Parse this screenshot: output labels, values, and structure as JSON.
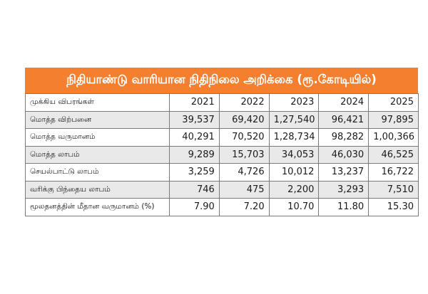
{
  "title": "நிதியாண்டு வாரியான நிதிநிலை அறிக்கை (ரூ.கோடியில்)",
  "header": {
    "label": "முக்கிய விபரங்கள்",
    "years": [
      "2021",
      "2022",
      "2023",
      "2024",
      "2025"
    ]
  },
  "rows": [
    {
      "label": "மொத்த விற்பனை",
      "values": [
        "39,537",
        "69,420",
        "1,27,540",
        "96,421",
        "97,895"
      ]
    },
    {
      "label": "மொத்த வருமானம்",
      "values": [
        "40,291",
        "70,520",
        "1,28,734",
        "98,282",
        "1,00,366"
      ]
    },
    {
      "label": "மொத்த லாபம்",
      "values": [
        "9,289",
        "15,703",
        "34,053",
        "46,030",
        "46,525"
      ]
    },
    {
      "label": "செயல்பாட்டு லாபம்",
      "values": [
        "3,259",
        "4,726",
        "10,012",
        "13,237",
        "16,722"
      ]
    },
    {
      "label": "வரிக்கு பிந்தைய லாபம்",
      "values": [
        "746",
        "475",
        "2,200",
        "3,293",
        "7,510"
      ]
    },
    {
      "label": "மூலதனத்தின் மீதான வருமானம் (%)",
      "values": [
        "7.90",
        "7.20",
        "10.70",
        "11.80",
        "15.30"
      ]
    }
  ],
  "colors": {
    "title_background": "#f47f2e",
    "title_text": "#ffffff",
    "row_shade": "#e9e9e9",
    "border": "#7a7a7a"
  }
}
